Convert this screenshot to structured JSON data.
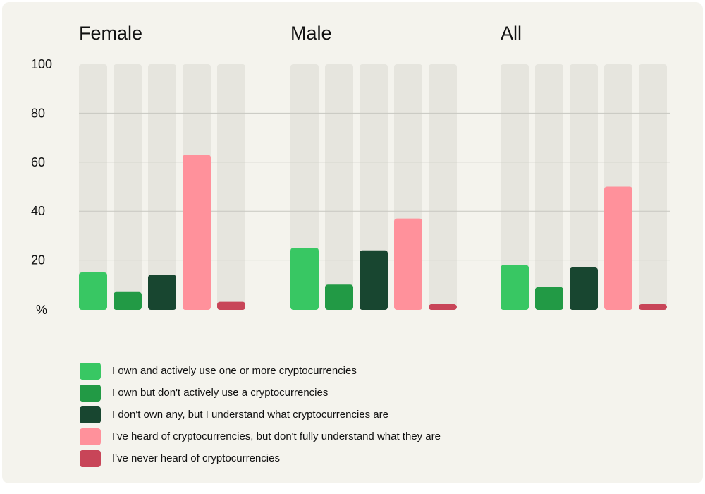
{
  "chart_data": {
    "type": "bar",
    "yunit_label": "%",
    "ylim": [
      0,
      100
    ],
    "yticks": [
      20,
      40,
      60,
      80,
      100
    ],
    "grid": true,
    "legend_position": "bottom-left",
    "panels": [
      {
        "title": "Female",
        "values": [
          15,
          7,
          14,
          63,
          3
        ]
      },
      {
        "title": "Male",
        "values": [
          25,
          10,
          24,
          37,
          2
        ]
      },
      {
        "title": "All",
        "values": [
          18,
          9,
          17,
          50,
          2
        ]
      }
    ],
    "series": [
      {
        "name": "I own and actively use one or more cryptocurrencies",
        "color": "#38c763"
      },
      {
        "name": "I own but don't actively use a cryptocurrencies",
        "color": "#229a45"
      },
      {
        "name": "I don't own any, but I understand what cryptocurrencies are",
        "color": "#184630"
      },
      {
        "name": "I've heard of cryptocurrencies, but don't fully understand what they are",
        "color": "#ff919b"
      },
      {
        "name": "I've never heard of cryptocurrencies",
        "color": "#c84558"
      }
    ],
    "track_color": "#e6e5de",
    "grid_color": "#c7c7c0"
  }
}
